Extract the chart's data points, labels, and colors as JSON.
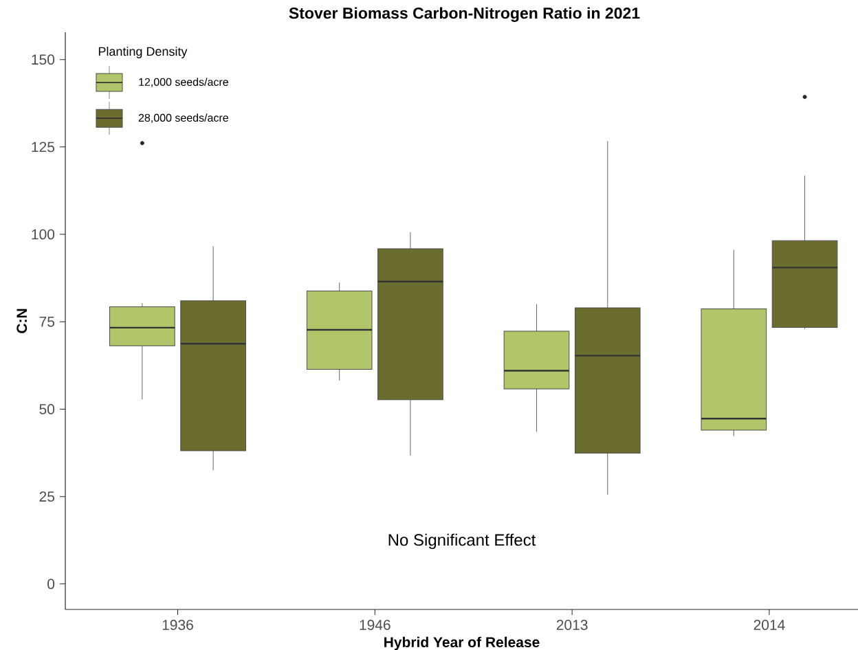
{
  "chart_data": {
    "type": "box",
    "title": "Stover Biomass Carbon-Nitrogen Ratio in 2021",
    "xlabel": "Hybrid Year of Release",
    "ylabel": "C:N",
    "legend_title": "Planting Density",
    "legend": "top left",
    "annotations": [
      "No Significant Effect"
    ],
    "categories": [
      "1936",
      "1946",
      "2013",
      "2014"
    ],
    "series": [
      {
        "name": "12,000 seeds/acre",
        "color": "#b1c66a",
        "boxes": [
          {
            "low": 52.8,
            "q1": 68.1,
            "median": 73.3,
            "q3": 79.3,
            "high": 80.3,
            "outliers": [
              126.1
            ]
          },
          {
            "low": 58.2,
            "q1": 61.4,
            "median": 72.7,
            "q3": 83.8,
            "high": 86.2
          },
          {
            "low": 43.5,
            "q1": 55.8,
            "median": 61.0,
            "q3": 72.3,
            "high": 80.0
          },
          {
            "low": 42.3,
            "q1": 44.0,
            "median": 47.3,
            "q3": 78.7,
            "high": 95.6
          }
        ]
      },
      {
        "name": "28,000 seeds/acre",
        "color": "#6a6d2e",
        "boxes": [
          {
            "low": 32.5,
            "q1": 38.1,
            "median": 68.7,
            "q3": 81.0,
            "high": 96.6
          },
          {
            "low": 36.7,
            "q1": 52.7,
            "median": 86.5,
            "q3": 95.9,
            "high": 100.6
          },
          {
            "low": 25.5,
            "q1": 37.4,
            "median": 65.3,
            "q3": 79.0,
            "high": 126.7
          },
          {
            "low": 72.9,
            "q1": 73.4,
            "median": 90.5,
            "q3": 98.2,
            "high": 116.8,
            "outliers": [
              139.3
            ]
          }
        ]
      }
    ],
    "ylim": [
      -7.3,
      157.8
    ],
    "yticks": [
      0,
      25,
      50,
      75,
      100,
      125,
      150
    ]
  }
}
